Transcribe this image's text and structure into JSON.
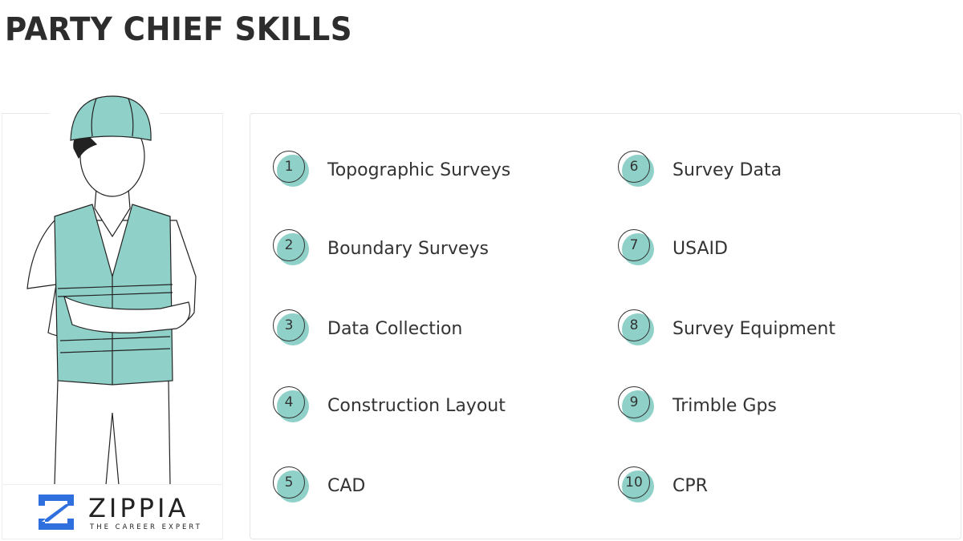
{
  "title": "PARTY CHIEF SKILLS",
  "brand": {
    "name": "ZIPPIA",
    "tagline": "THE CAREER EXPERT",
    "color": "#2f6fde"
  },
  "accent_color": "#8fd1c8",
  "illustration": "worker-hard-hat-vest",
  "skills": [
    {
      "number": "1",
      "label": "Topographic Surveys"
    },
    {
      "number": "2",
      "label": "Boundary Surveys"
    },
    {
      "number": "3",
      "label": "Data Collection"
    },
    {
      "number": "4",
      "label": "Construction Layout"
    },
    {
      "number": "5",
      "label": "CAD"
    },
    {
      "number": "6",
      "label": "Survey Data"
    },
    {
      "number": "7",
      "label": "USAID"
    },
    {
      "number": "8",
      "label": "Survey Equipment"
    },
    {
      "number": "9",
      "label": "Trimble Gps"
    },
    {
      "number": "10",
      "label": "CPR"
    }
  ]
}
